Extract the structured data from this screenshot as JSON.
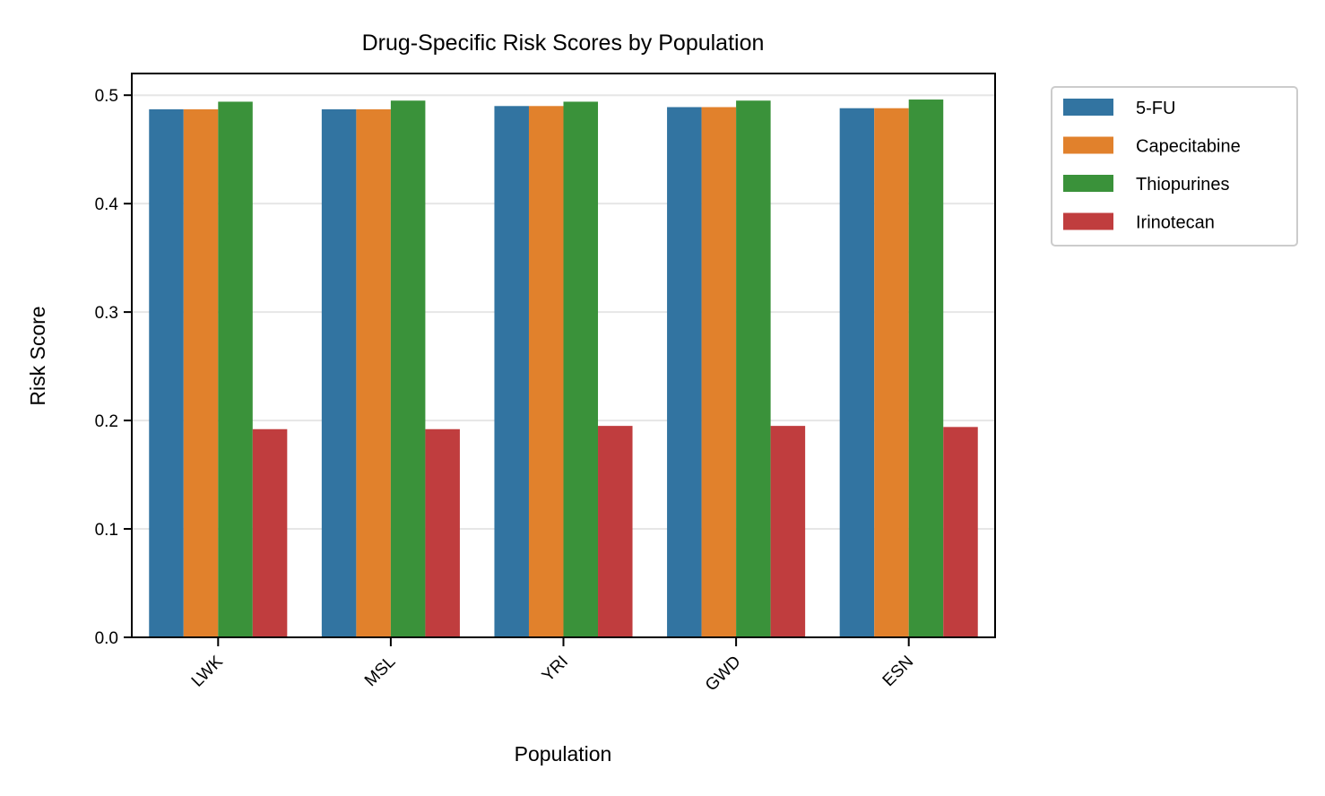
{
  "chart_data": {
    "type": "bar",
    "title": "Drug-Specific Risk Scores by Population",
    "xlabel": "Population",
    "ylabel": "Risk Score",
    "categories": [
      "LWK",
      "MSL",
      "YRI",
      "GWD",
      "ESN"
    ],
    "series": [
      {
        "name": "5-FU",
        "color": "#3274a1",
        "values": [
          0.487,
          0.487,
          0.49,
          0.489,
          0.488
        ]
      },
      {
        "name": "Capecitabine",
        "color": "#e1812c",
        "values": [
          0.487,
          0.487,
          0.49,
          0.489,
          0.488
        ]
      },
      {
        "name": "Thiopurines",
        "color": "#3a923a",
        "values": [
          0.494,
          0.495,
          0.494,
          0.495,
          0.496
        ]
      },
      {
        "name": "Irinotecan",
        "color": "#c03d3e",
        "values": [
          0.192,
          0.192,
          0.195,
          0.195,
          0.194
        ]
      }
    ],
    "ylim": [
      0,
      0.52
    ],
    "yticks": [
      "0.0",
      "0.1",
      "0.2",
      "0.3",
      "0.4",
      "0.5"
    ],
    "ytick_values": [
      0,
      0.1,
      0.2,
      0.3,
      0.4,
      0.5
    ],
    "grid": "horizontal",
    "legend_position": "outside-right"
  }
}
